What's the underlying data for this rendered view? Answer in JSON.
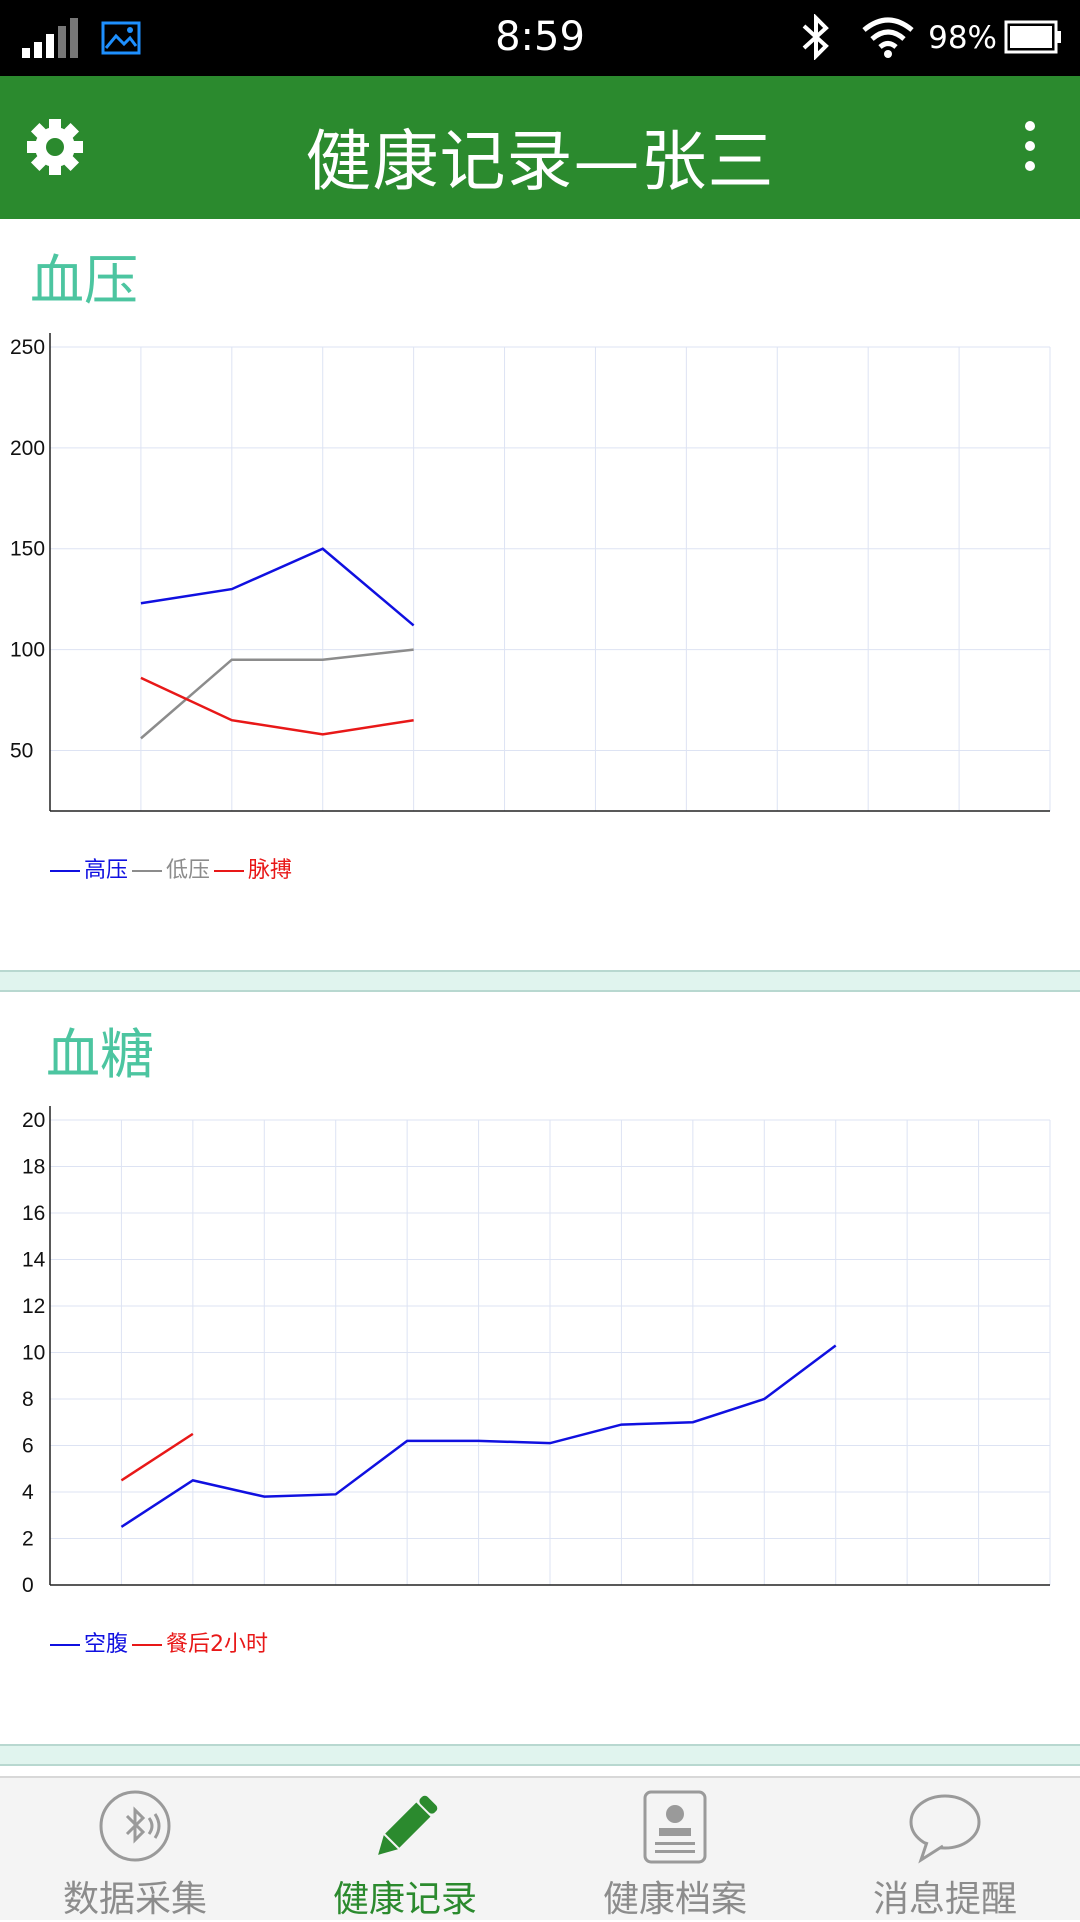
{
  "status_bar": {
    "time": "8:59",
    "battery": "98%"
  },
  "app_bar": {
    "title": "健康记录—张三"
  },
  "blood_pressure": {
    "title": "血压"
  },
  "blood_sugar": {
    "title": "血糖"
  },
  "bottom_nav": {
    "items": [
      {
        "label": "数据采集",
        "icon": "bluetooth-bubble-icon"
      },
      {
        "label": "健康记录",
        "icon": "pencil-icon"
      },
      {
        "label": "健康档案",
        "icon": "profile-card-icon"
      },
      {
        "label": "消息提醒",
        "icon": "chat-bubble-icon"
      }
    ],
    "active_index": 1
  },
  "colors": {
    "accent": "#2b8a2e",
    "section_title": "#4cc5a0",
    "grid": "#dde3f3"
  },
  "chart_data": [
    {
      "type": "line",
      "title": "血压",
      "x": [
        0,
        1,
        2,
        3,
        4,
        5,
        6,
        7,
        8,
        9,
        10,
        11
      ],
      "xlim": [
        0,
        11
      ],
      "ylim": [
        20,
        250
      ],
      "yticks": [
        50,
        100,
        150,
        200,
        250
      ],
      "grid": true,
      "legend_position": "bottom-left",
      "series": [
        {
          "name": "高压",
          "color": "#1010e0",
          "values": [
            null,
            123,
            130,
            150,
            112,
            null,
            null,
            null,
            null,
            null,
            null,
            null
          ]
        },
        {
          "name": "低压",
          "color": "#8c8c8c",
          "values": [
            null,
            56,
            95,
            95,
            100,
            null,
            null,
            null,
            null,
            null,
            null,
            null
          ]
        },
        {
          "name": "脉搏",
          "color": "#e81818",
          "values": [
            null,
            86,
            65,
            58,
            65,
            null,
            null,
            null,
            null,
            null,
            null,
            null
          ]
        }
      ]
    },
    {
      "type": "line",
      "title": "血糖",
      "x": [
        0,
        1,
        2,
        3,
        4,
        5,
        6,
        7,
        8,
        9,
        10,
        11,
        12,
        13
      ],
      "xlim": [
        0,
        14
      ],
      "ylim": [
        0,
        20
      ],
      "yticks": [
        0,
        2,
        4,
        6,
        8,
        10,
        12,
        14,
        16,
        18,
        20
      ],
      "grid": true,
      "legend_position": "bottom-left",
      "series": [
        {
          "name": "空腹",
          "color": "#1010e0",
          "values": [
            null,
            2.5,
            4.5,
            3.8,
            3.9,
            6.2,
            6.2,
            6.1,
            6.9,
            7.0,
            8.0,
            10.3,
            null,
            null
          ]
        },
        {
          "name": "餐后2小时",
          "color": "#e81818",
          "values": [
            null,
            4.5,
            6.5,
            null,
            null,
            null,
            null,
            null,
            null,
            null,
            null,
            null,
            null,
            null
          ]
        }
      ]
    }
  ]
}
